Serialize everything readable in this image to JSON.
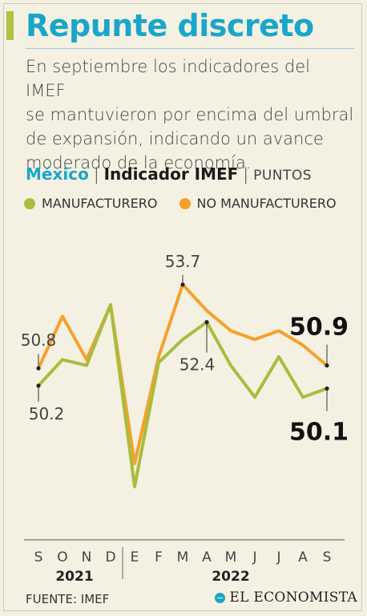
{
  "header": {
    "title": "Repunte discreto",
    "description": "En septiembre los indicadores del IMEF\nse mantuvieron por encima del umbral\nde expansión, indicando un avance\nmoderado de la economía."
  },
  "subhead": {
    "country": "México",
    "indicator": "Indicador IMEF",
    "units": "PUNTOS"
  },
  "legend": [
    {
      "label": "MANUFACTURERO",
      "color": "#a8bd3f"
    },
    {
      "label": "NO MANUFACTURERO",
      "color": "#f4a12d"
    }
  ],
  "footer": {
    "source": "FUENTE: IMEF",
    "brand": "EL ECONOMISTA"
  },
  "chart_data": {
    "type": "line",
    "x": [
      "S",
      "O",
      "N",
      "D",
      "E",
      "F",
      "M",
      "A",
      "M",
      "J",
      "J",
      "A",
      "S"
    ],
    "year_groups": [
      {
        "label": "2021",
        "start": 0,
        "end": 3
      },
      {
        "label": "2022",
        "start": 4,
        "end": 12
      }
    ],
    "ylim": [
      45.5,
      55.5
    ],
    "series": [
      {
        "name": "NO MANUFACTURERO",
        "color": "#f4a12d",
        "values": [
          50.8,
          52.6,
          51.1,
          53.0,
          47.5,
          51.2,
          53.7,
          52.8,
          52.1,
          51.8,
          52.1,
          51.6,
          50.9
        ]
      },
      {
        "name": "MANUFACTURERO",
        "color": "#a8bd3f",
        "values": [
          50.2,
          51.1,
          50.9,
          53.0,
          46.7,
          51.0,
          51.8,
          52.4,
          50.9,
          49.8,
          51.2,
          49.8,
          50.1
        ]
      }
    ],
    "annotations": [
      {
        "series": 0,
        "index": 0,
        "text": "50.8",
        "style": "normal"
      },
      {
        "series": 1,
        "index": 0,
        "text": "50.2",
        "style": "normal"
      },
      {
        "series": 0,
        "index": 6,
        "text": "53.7",
        "style": "normal"
      },
      {
        "series": 1,
        "index": 7,
        "text": "52.4",
        "style": "normal"
      },
      {
        "series": 0,
        "index": 12,
        "text": "50.9",
        "style": "bold"
      },
      {
        "series": 1,
        "index": 12,
        "text": "50.1",
        "style": "bold"
      }
    ]
  }
}
